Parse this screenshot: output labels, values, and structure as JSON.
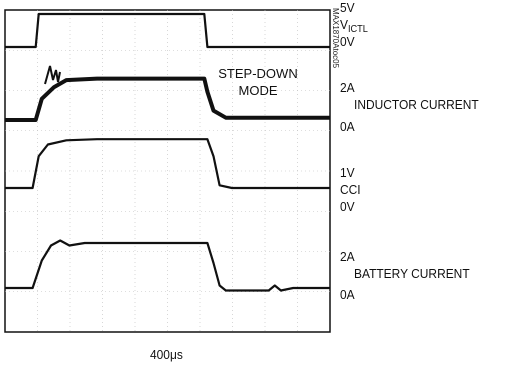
{
  "chart_data": {
    "type": "line",
    "title": "",
    "annotation": "STEP-DOWN\nMODE",
    "part_id": "MAX1870Atoc05",
    "time_scale": "400μs",
    "grid": true,
    "traces": [
      {
        "name": "VICTL",
        "name_main": "V",
        "name_sub": "ICTL",
        "scale_top": "5V",
        "scale_bottom": "0V",
        "points": [
          [
            0,
            0
          ],
          [
            0.5,
            0
          ],
          [
            0.55,
            1
          ],
          [
            3.25,
            1
          ],
          [
            3.3,
            0
          ],
          [
            5.3,
            0
          ]
        ]
      },
      {
        "name": "INDUCTOR CURRENT",
        "scale_top": "2A",
        "scale_bottom": "0A",
        "points": [
          [
            0,
            0
          ],
          [
            0.5,
            0
          ],
          [
            0.6,
            0.45
          ],
          [
            0.8,
            0.7
          ],
          [
            1.0,
            0.85
          ],
          [
            1.5,
            0.88
          ],
          [
            3.25,
            0.88
          ],
          [
            3.3,
            0.6
          ],
          [
            3.4,
            0.2
          ],
          [
            3.6,
            0.05
          ],
          [
            5.3,
            0.05
          ]
        ]
      },
      {
        "name": "CCI",
        "scale_top": "1V",
        "scale_bottom": "0V",
        "points": [
          [
            0,
            0
          ],
          [
            0.45,
            0
          ],
          [
            0.55,
            0.6
          ],
          [
            0.7,
            0.82
          ],
          [
            1.0,
            0.9
          ],
          [
            1.5,
            0.92
          ],
          [
            3.3,
            0.92
          ],
          [
            3.4,
            0.6
          ],
          [
            3.5,
            0.05
          ],
          [
            3.7,
            0
          ],
          [
            5.3,
            0
          ]
        ]
      },
      {
        "name": "BATTERY CURRENT",
        "scale_top": "2A",
        "scale_bottom": "0A",
        "points": [
          [
            0,
            0
          ],
          [
            0.45,
            0
          ],
          [
            0.6,
            0.55
          ],
          [
            0.75,
            0.85
          ],
          [
            0.9,
            0.95
          ],
          [
            1.05,
            0.85
          ],
          [
            1.3,
            0.9
          ],
          [
            3.3,
            0.9
          ],
          [
            3.4,
            0.5
          ],
          [
            3.5,
            0.05
          ],
          [
            3.6,
            -0.05
          ],
          [
            4.3,
            -0.05
          ],
          [
            4.4,
            0.05
          ],
          [
            4.5,
            -0.05
          ],
          [
            4.7,
            0
          ],
          [
            5.3,
            0
          ]
        ]
      }
    ]
  }
}
